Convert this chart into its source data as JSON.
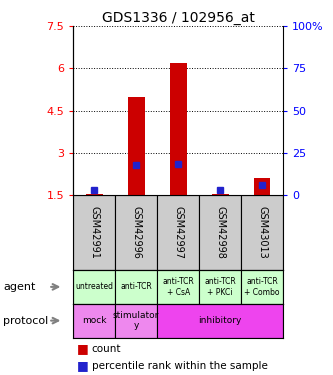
{
  "title": "GDS1336 / 102956_at",
  "samples": [
    "GSM42991",
    "GSM42996",
    "GSM42997",
    "GSM42998",
    "GSM43013"
  ],
  "count_values": [
    1.52,
    5.0,
    6.2,
    1.52,
    2.1
  ],
  "percentile_values": [
    1.68,
    2.55,
    2.6,
    1.68,
    1.85
  ],
  "ylim_left": [
    1.5,
    7.5
  ],
  "ylim_right": [
    0,
    100
  ],
  "yticks_left": [
    1.5,
    3.0,
    4.5,
    6.0,
    7.5
  ],
  "yticks_right": [
    0,
    25,
    50,
    75,
    100
  ],
  "ytick_labels_left": [
    "1.5",
    "3",
    "4.5",
    "6",
    "7.5"
  ],
  "ytick_labels_right": [
    "0",
    "25",
    "50",
    "75",
    "100%"
  ],
  "bar_color": "#cc0000",
  "percentile_color": "#2222cc",
  "agent_labels": [
    "untreated",
    "anti-TCR",
    "anti-TCR\n+ CsA",
    "anti-TCR\n+ PKCi",
    "anti-TCR\n+ Combo"
  ],
  "agent_bg_color": "#ccffcc",
  "protocol_groups": [
    {
      "label": "mock",
      "span": [
        0,
        1
      ]
    },
    {
      "label": "stimulator\ny",
      "span": [
        1,
        2
      ]
    },
    {
      "label": "inhibitory",
      "span": [
        2,
        5
      ]
    }
  ],
  "protocol_mock_color": "#ee88ee",
  "protocol_stim_color": "#ee88ee",
  "protocol_inhib_color": "#ee44ee",
  "gsm_bg_color": "#cccccc",
  "bar_width": 0.4,
  "base_value": 1.5
}
